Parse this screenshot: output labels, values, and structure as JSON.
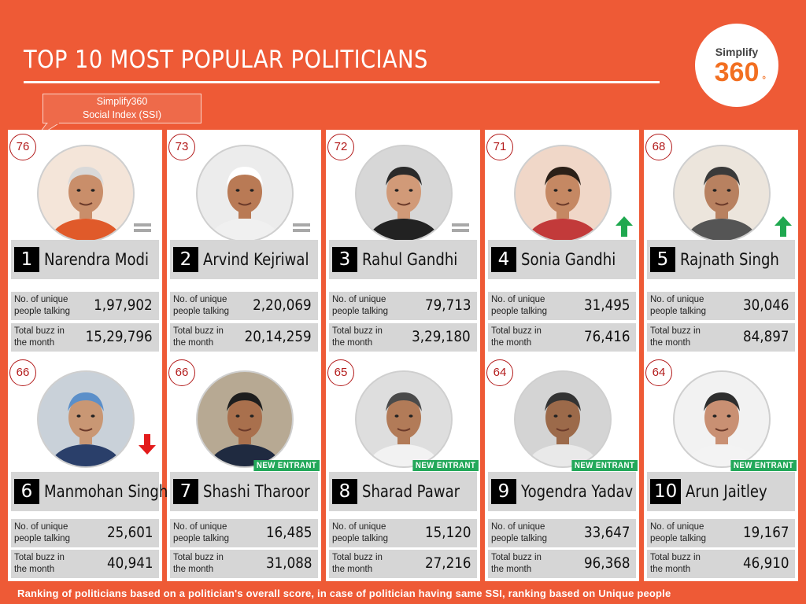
{
  "title": "TOP 10 MOST POPULAR POLITICIANS",
  "logo": {
    "top": "Simplify",
    "num": "360"
  },
  "callout": {
    "line1": "Simplify360",
    "line2": "Social Index (SSI)"
  },
  "labels": {
    "unique_line1": "No. of unique",
    "unique_line2": "people talking",
    "buzz_line1": "Total buzz in",
    "buzz_line2": "the month",
    "new_entrant": "NEW ENTRANT"
  },
  "politicians": [
    {
      "rank": "1",
      "name": "Narendra Modi",
      "ssi": "76",
      "unique": "1,97,902",
      "buzz": "15,29,796",
      "trend": "same"
    },
    {
      "rank": "2",
      "name": "Arvind Kejriwal",
      "ssi": "73",
      "unique": "2,20,069",
      "buzz": "20,14,259",
      "trend": "same"
    },
    {
      "rank": "3",
      "name": "Rahul Gandhi",
      "ssi": "72",
      "unique": "79,713",
      "buzz": "3,29,180",
      "trend": "same"
    },
    {
      "rank": "4",
      "name": "Sonia Gandhi",
      "ssi": "71",
      "unique": "31,495",
      "buzz": "76,416",
      "trend": "up"
    },
    {
      "rank": "5",
      "name": "Rajnath Singh",
      "ssi": "68",
      "unique": "30,046",
      "buzz": "84,897",
      "trend": "up"
    },
    {
      "rank": "6",
      "name": "Manmohan Singh",
      "ssi": "66",
      "unique": "25,601",
      "buzz": "40,941",
      "trend": "down"
    },
    {
      "rank": "7",
      "name": "Shashi Tharoor",
      "ssi": "66",
      "unique": "16,485",
      "buzz": "31,088",
      "trend": "new"
    },
    {
      "rank": "8",
      "name": "Sharad Pawar",
      "ssi": "65",
      "unique": "15,120",
      "buzz": "27,216",
      "trend": "new"
    },
    {
      "rank": "9",
      "name": "Yogendra Yadav",
      "ssi": "64",
      "unique": "33,647",
      "buzz": "96,368",
      "trend": "new"
    },
    {
      "rank": "10",
      "name": "Arun Jaitley",
      "ssi": "64",
      "unique": "19,167",
      "buzz": "46,910",
      "trend": "new"
    }
  ],
  "colors": {
    "background": "#ee5a36",
    "badge": "#b31b1b",
    "up": "#1fa84f",
    "down": "#e31b1b",
    "new_entrant": "#23a85a",
    "logo_accent": "#f26f21"
  },
  "icons": {
    "same": "equals-icon",
    "up": "up-arrow-icon",
    "down": "down-arrow-icon",
    "photo": "portrait-icon"
  },
  "footer": "Ranking of politicians based on a politician's overall score, in case of politician having same SSI, ranking based on Unique people"
}
